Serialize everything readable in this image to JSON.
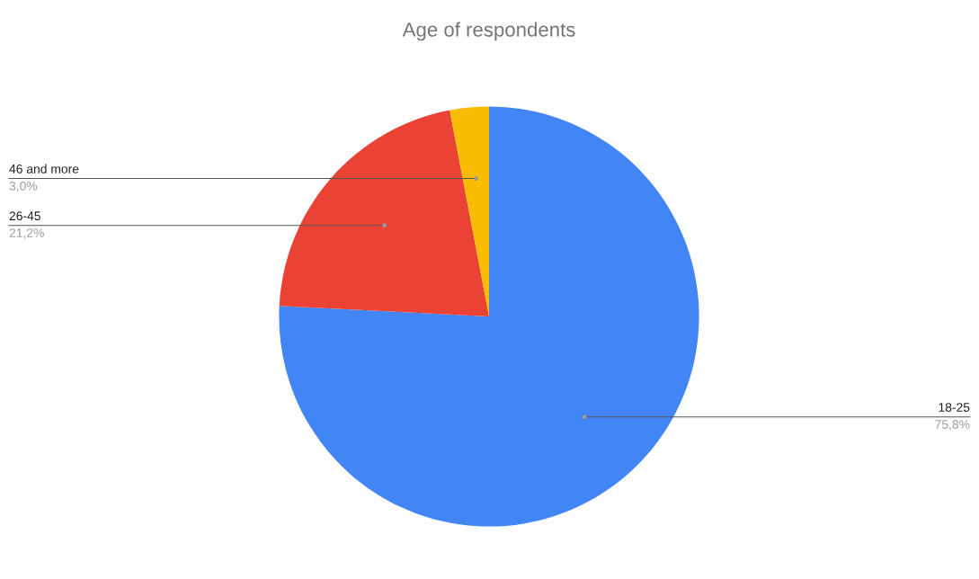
{
  "chart_data": {
    "type": "pie",
    "title": "Age of respondents",
    "categories": [
      "18-25",
      "26-45",
      "46 and more"
    ],
    "values": [
      75.8,
      21.2,
      3.0
    ],
    "colors": [
      "#4285f4",
      "#ea4335",
      "#fbbc04"
    ],
    "value_labels": [
      "75,8%",
      "21,2%",
      "3,0%"
    ],
    "legend": false
  }
}
